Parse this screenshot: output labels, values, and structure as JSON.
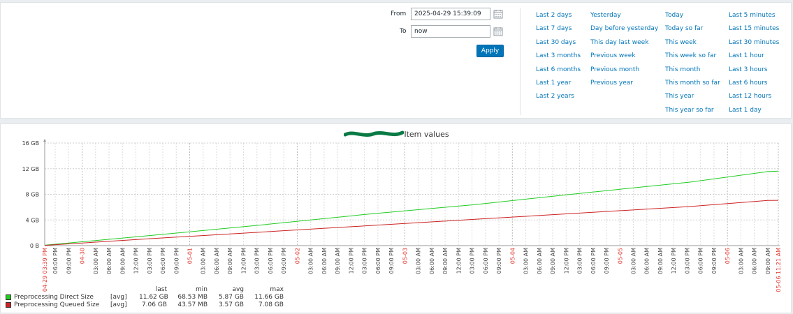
{
  "time_filter": {
    "from_label": "From",
    "from_value": "2025-04-29 15:39:09",
    "to_label": "To",
    "to_value": "now",
    "apply_label": "Apply",
    "quick_ranges": [
      [
        "Last 2 days",
        "Last 7 days",
        "Last 30 days",
        "Last 3 months",
        "Last 6 months",
        "Last 1 year",
        "Last 2 years"
      ],
      [
        "Yesterday",
        "Day before yesterday",
        "This day last week",
        "Previous week",
        "Previous month",
        "Previous year"
      ],
      [
        "Today",
        "Today so far",
        "This week",
        "This week so far",
        "This month",
        "This month so far",
        "This year",
        "This year so far"
      ],
      [
        "Last 5 minutes",
        "Last 15 minutes",
        "Last 30 minutes",
        "Last 1 hour",
        "Last 3 hours",
        "Last 6 hours",
        "Last 12 hours",
        "Last 1 day"
      ]
    ]
  },
  "graph": {
    "title_visible_part": "Item values",
    "y_tick_labels": [
      "16 GB",
      "12 GB",
      "8 GB",
      "4 GB",
      "0 B"
    ],
    "legend": {
      "headers": {
        "last": "last",
        "min": "min",
        "avg": "avg",
        "max": "max"
      },
      "items": [
        {
          "name": "Preprocessing Direct Size",
          "func": "[avg]",
          "last": "11.62 GB",
          "min": "68.53 MB",
          "avg": "5.87 GB",
          "max": "11.66 GB",
          "color": "#22cc22"
        },
        {
          "name": "Preprocessing Queued Size",
          "func": "[avg]",
          "last": "7.06 GB",
          "min": "43.57 MB",
          "avg": "3.57 GB",
          "max": "7.08 GB",
          "color": "#cc2222"
        }
      ]
    }
  },
  "chart_data": {
    "type": "line",
    "title": "Item values",
    "ylabel": "",
    "ylim": [
      0,
      16
    ],
    "y_unit": "GB",
    "grid": true,
    "x_range": [
      "2025-04-29 03:39 PM",
      "2025-05-06 11:21 AM"
    ],
    "x_tick_labels": [
      {
        "label": "04-29 03:39 PM",
        "major": true
      },
      {
        "label": "06:00 PM"
      },
      {
        "label": "09:00 PM"
      },
      {
        "label": "04-30",
        "major": true
      },
      {
        "label": "03:00 AM"
      },
      {
        "label": "06:00 AM"
      },
      {
        "label": "09:00 AM"
      },
      {
        "label": "12:00 PM"
      },
      {
        "label": "03:00 PM"
      },
      {
        "label": "06:00 PM"
      },
      {
        "label": "09:00 PM"
      },
      {
        "label": "05-01",
        "major": true
      },
      {
        "label": "03:00 AM"
      },
      {
        "label": "06:00 AM"
      },
      {
        "label": "09:00 AM"
      },
      {
        "label": "12:00 PM"
      },
      {
        "label": "03:00 PM"
      },
      {
        "label": "06:00 PM"
      },
      {
        "label": "09:00 PM"
      },
      {
        "label": "05-02",
        "major": true
      },
      {
        "label": "03:00 AM"
      },
      {
        "label": "06:00 AM"
      },
      {
        "label": "09:00 AM"
      },
      {
        "label": "12:00 PM"
      },
      {
        "label": "03:00 PM"
      },
      {
        "label": "06:00 PM"
      },
      {
        "label": "09:00 PM"
      },
      {
        "label": "05-03",
        "major": true
      },
      {
        "label": "03:00 AM"
      },
      {
        "label": "06:00 AM"
      },
      {
        "label": "09:00 AM"
      },
      {
        "label": "12:00 PM"
      },
      {
        "label": "03:00 PM"
      },
      {
        "label": "06:00 PM"
      },
      {
        "label": "09:00 PM"
      },
      {
        "label": "05-04",
        "major": true
      },
      {
        "label": "03:00 AM"
      },
      {
        "label": "06:00 AM"
      },
      {
        "label": "09:00 AM"
      },
      {
        "label": "12:00 PM"
      },
      {
        "label": "03:00 PM"
      },
      {
        "label": "06:00 PM"
      },
      {
        "label": "09:00 PM"
      },
      {
        "label": "05-05",
        "major": true
      },
      {
        "label": "03:00 AM"
      },
      {
        "label": "06:00 AM"
      },
      {
        "label": "09:00 AM"
      },
      {
        "label": "12:00 PM"
      },
      {
        "label": "03:00 PM"
      },
      {
        "label": "06:00 PM"
      },
      {
        "label": "09:00 PM"
      },
      {
        "label": "05-06",
        "major": true
      },
      {
        "label": "03:00 AM"
      },
      {
        "label": "06:00 AM"
      },
      {
        "label": "09:00 AM"
      },
      {
        "label": "05-06 11:21 AM",
        "major": true
      }
    ],
    "x_hours": [
      0,
      2.35,
      5.35,
      8.35,
      11.35,
      14.35,
      17.35,
      20.35,
      23.35,
      26.35,
      29.35,
      32.35,
      35.35,
      38.35,
      41.35,
      44.35,
      47.35,
      50.35,
      53.35,
      56.35,
      59.35,
      62.35,
      65.35,
      68.35,
      71.35,
      74.35,
      77.35,
      80.35,
      83.35,
      86.35,
      89.35,
      92.35,
      95.35,
      98.35,
      101.35,
      104.35,
      107.35,
      110.35,
      113.35,
      116.35,
      119.35,
      122.35,
      125.35,
      128.35,
      131.35,
      134.35,
      137.35,
      140.35,
      143.35,
      146.35,
      149.35,
      152.35,
      155.35,
      158.35,
      161.35,
      163.7
    ],
    "series": [
      {
        "name": "Preprocessing Direct Size",
        "color": "#22cc22",
        "x": [
          "2025-04-29 15:39",
          "2025-04-30 15:39",
          "2025-05-01 15:39",
          "2025-05-02 15:39",
          "2025-05-03 15:39",
          "2025-05-04 15:39",
          "2025-05-05 15:39",
          "2025-05-06 09:00",
          "2025-05-06 11:21"
        ],
        "values": [
          0.07,
          1.6,
          3.2,
          4.9,
          6.4,
          8.2,
          9.9,
          11.55,
          11.62
        ]
      },
      {
        "name": "Preprocessing Queued Size",
        "color": "#cc2222",
        "x": [
          "2025-04-29 15:39",
          "2025-04-30 15:39",
          "2025-05-01 15:39",
          "2025-05-02 15:39",
          "2025-05-03 15:39",
          "2025-05-04 15:39",
          "2025-05-05 15:39",
          "2025-05-06 09:00",
          "2025-05-06 11:21"
        ],
        "values": [
          0.04,
          1.1,
          2.1,
          3.1,
          4.1,
          5.1,
          6.1,
          7.05,
          7.06
        ]
      }
    ]
  }
}
